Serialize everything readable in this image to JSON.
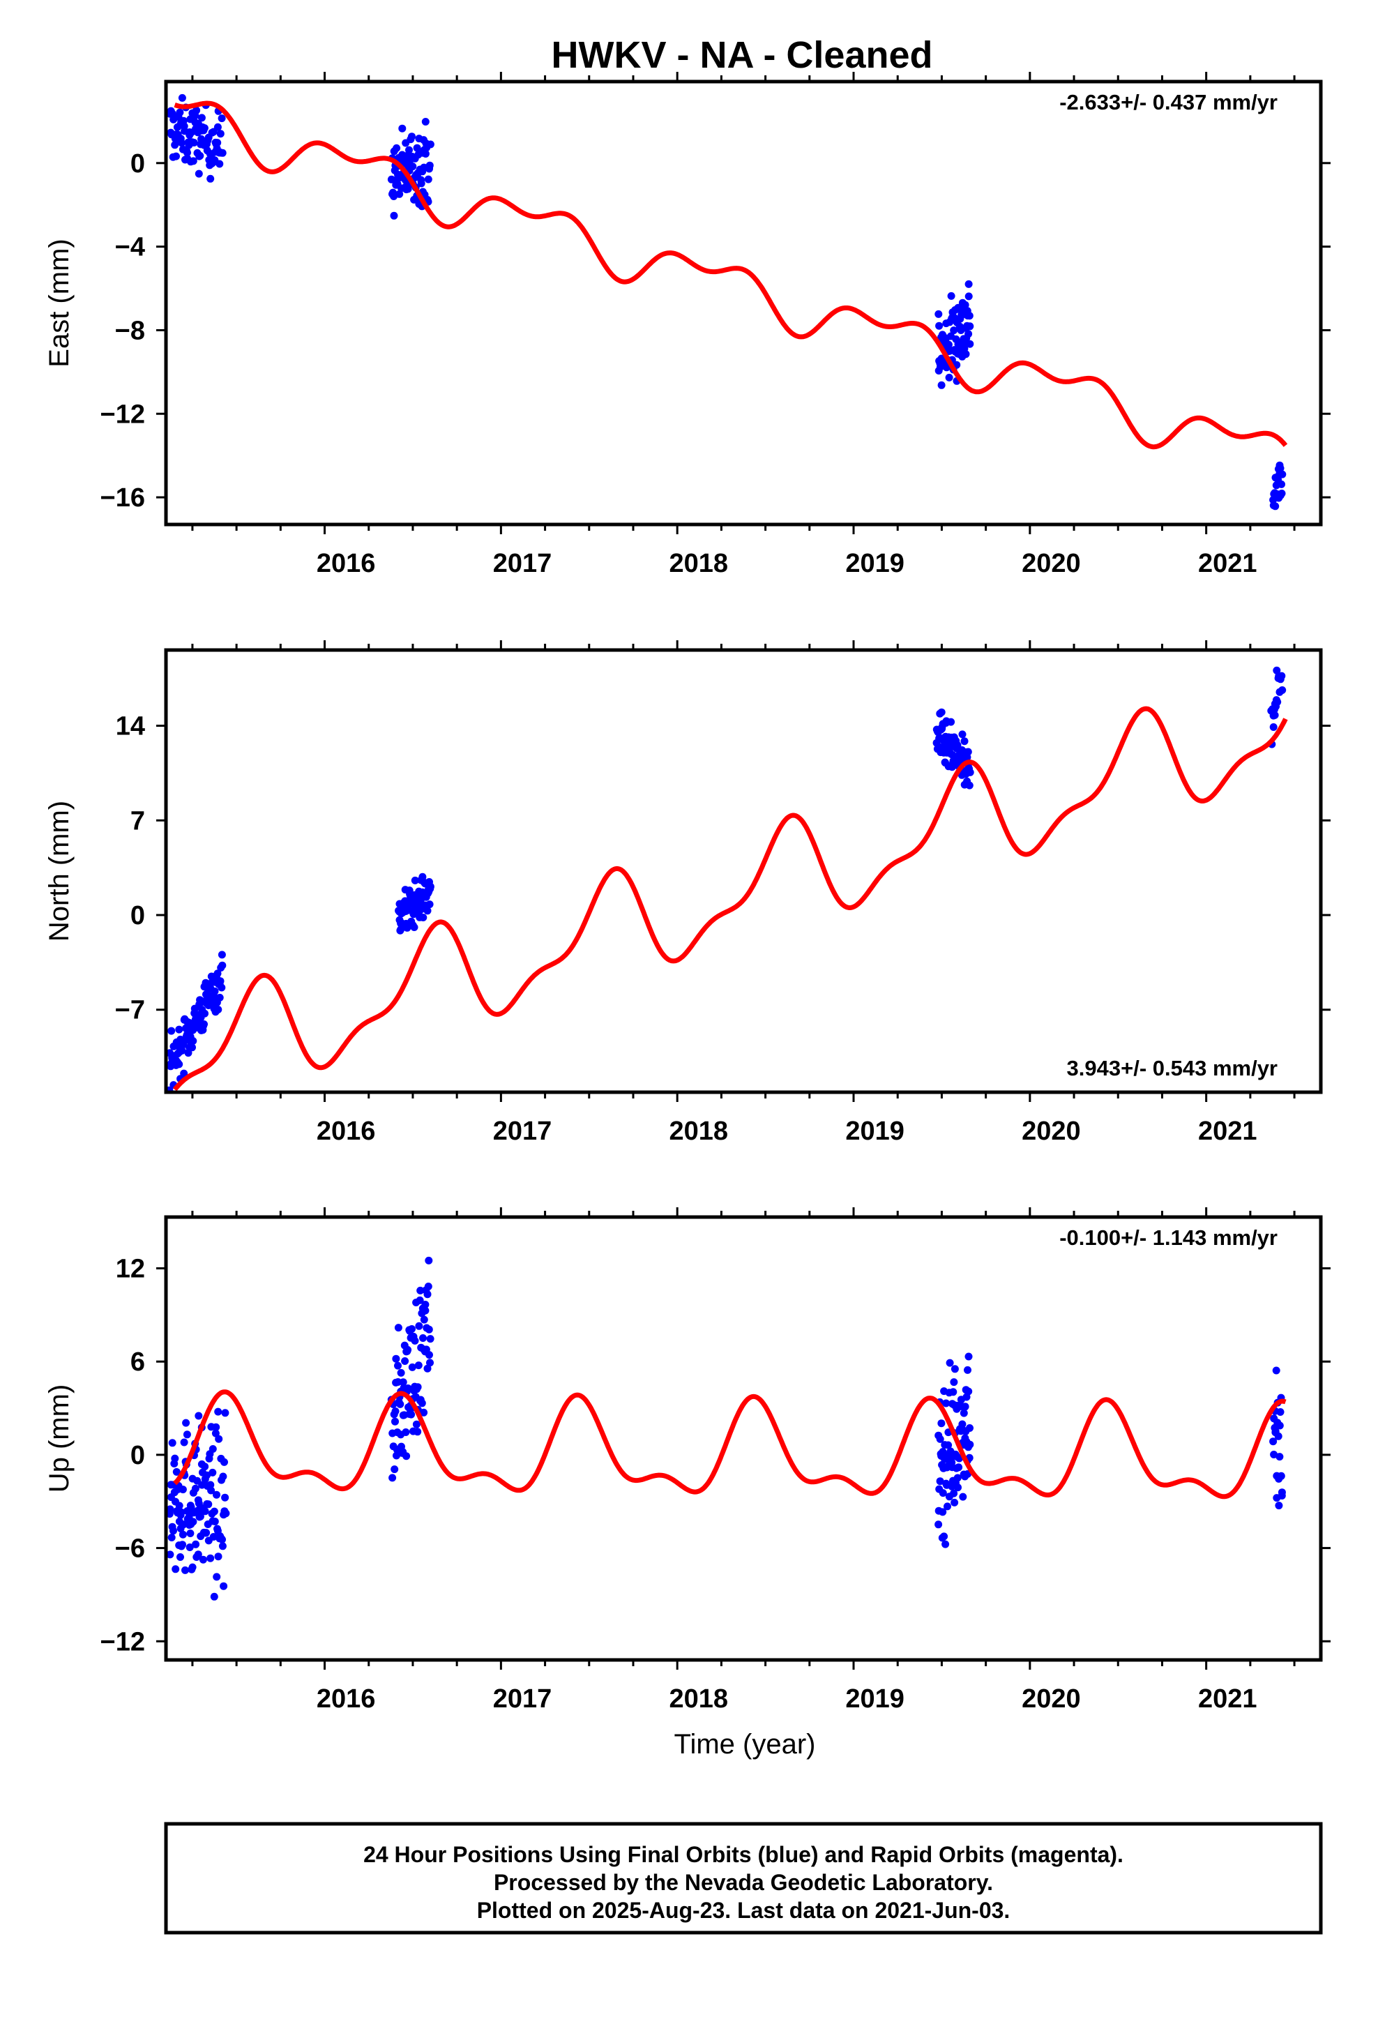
{
  "title": "HWKV  - NA - Cleaned",
  "footer": {
    "lines": [
      "24 Hour Positions Using Final Orbits (blue) and Rapid Orbits (magenta).",
      "Processed by the Nevada Geodetic Laboratory.",
      "Plotted on 2025-Aug-23. Last data on 2021-Jun-03."
    ]
  },
  "colors": {
    "data": "#0000ff",
    "model": "#ff0000",
    "frame": "#000000"
  },
  "chart_data": [
    {
      "type": "scatter",
      "ylabel": "East (mm)",
      "xlabel": "",
      "rate_text": "-2.633+/- 0.437 mm/yr",
      "rate_position": "top-right",
      "xlim": [
        2015.1,
        2021.65
      ],
      "ylim": [
        -17.3,
        3.9
      ],
      "xticks": [
        2016,
        2017,
        2018,
        2019,
        2020,
        2021
      ],
      "yticks": [
        0,
        -4,
        -8,
        -12,
        -16
      ],
      "model": {
        "offset": 2.5,
        "rate": -2.633,
        "t0": 2015.15,
        "a1": 0.9,
        "p1": 0.2,
        "a2": 0.6,
        "p2": 0.35
      },
      "segments": [
        {
          "t0": 2015.12,
          "t1": 2015.42,
          "n": 95,
          "center": [
            1.6,
            0.8
          ],
          "spread": 0.75
        },
        {
          "t0": 2016.38,
          "t1": 2016.6,
          "n": 85,
          "center": [
            -0.7,
            0.2
          ],
          "spread": 0.9
        },
        {
          "t0": 2019.48,
          "t1": 2019.66,
          "n": 85,
          "center": [
            -9.3,
            -7.4
          ],
          "spread": 1.0
        },
        {
          "t0": 2021.38,
          "t1": 2021.43,
          "n": 20,
          "center": [
            -15.8,
            -15.3
          ],
          "spread": 0.7
        }
      ],
      "grid": false
    },
    {
      "type": "scatter",
      "ylabel": "North (mm)",
      "xlabel": "",
      "rate_text": "3.943+/- 0.543 mm/yr",
      "rate_position": "bottom-right",
      "xlim": [
        2015.1,
        2021.65
      ],
      "ylim": [
        -13.1,
        19.6
      ],
      "xticks": [
        2016,
        2017,
        2018,
        2019,
        2020,
        2021
      ],
      "yticks": [
        14,
        7,
        0,
        -7
      ],
      "model": {
        "offset": -11.0,
        "rate": 3.943,
        "t0": 2015.15,
        "a1": 3.4,
        "p1": 0.8,
        "a2": 1.4,
        "p2": 0.1
      },
      "segments": [
        {
          "t0": 2015.12,
          "t1": 2015.42,
          "n": 110,
          "center": [
            -11.2,
            -4.5
          ],
          "spread": 0.9
        },
        {
          "t0": 2016.42,
          "t1": 2016.6,
          "n": 80,
          "center": [
            0.0,
            1.5
          ],
          "spread": 0.8
        },
        {
          "t0": 2019.47,
          "t1": 2019.66,
          "n": 90,
          "center": [
            13.3,
            10.5
          ],
          "spread": 0.9
        },
        {
          "t0": 2021.37,
          "t1": 2021.43,
          "n": 20,
          "center": [
            15.0,
            17.8
          ],
          "spread": 1.2
        }
      ],
      "grid": false
    },
    {
      "type": "scatter",
      "ylabel": "Up (mm)",
      "xlabel": "Time (year)",
      "rate_text": "-0.100+/- 1.143 mm/yr",
      "rate_position": "top-right",
      "xlim": [
        2015.1,
        2021.65
      ],
      "ylim": [
        -13.2,
        15.3
      ],
      "xticks": [
        2016,
        2017,
        2018,
        2019,
        2020,
        2021
      ],
      "yticks": [
        12,
        6,
        0,
        -6,
        -12
      ],
      "model": {
        "offset": 0.2,
        "rate": -0.1,
        "t0": 2015.15,
        "a1": 2.6,
        "p1": 0.95,
        "a2": 1.3,
        "p2": 0.35
      },
      "segments": [
        {
          "t0": 2015.12,
          "t1": 2015.44,
          "n": 130,
          "center": [
            -2.5,
            -3.5
          ],
          "spread": 2.5
        },
        {
          "t0": 2016.38,
          "t1": 2016.6,
          "n": 90,
          "center": [
            2.0,
            8.0
          ],
          "spread": 2.3
        },
        {
          "t0": 2019.48,
          "t1": 2019.66,
          "n": 90,
          "center": [
            -1.0,
            3.0
          ],
          "spread": 2.4
        },
        {
          "t0": 2021.38,
          "t1": 2021.43,
          "n": 22,
          "center": [
            1.5,
            -1.0
          ],
          "spread": 2.8
        }
      ],
      "grid": false
    }
  ]
}
